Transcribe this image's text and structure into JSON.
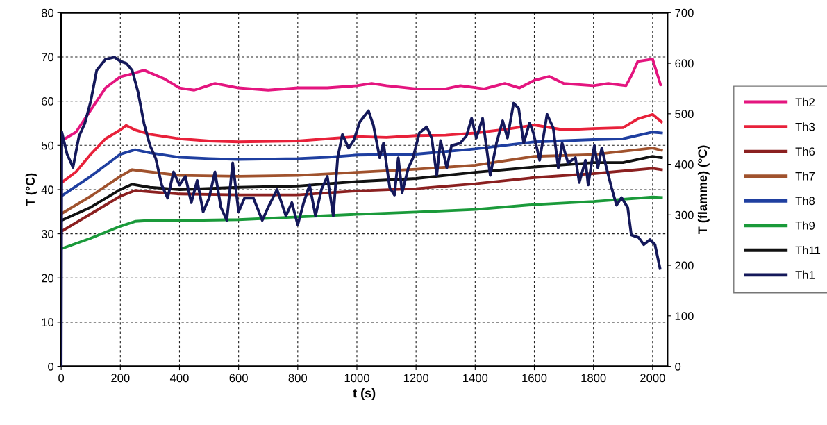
{
  "chart_data": {
    "type": "line",
    "xlabel": "t (s)",
    "ylabel": "T (°C)",
    "y2label": "T (flamme) (°C)",
    "xlim": [
      0,
      2050
    ],
    "xticks": [
      0,
      200,
      400,
      600,
      800,
      1000,
      1200,
      1400,
      1600,
      1800,
      2000
    ],
    "ylim": [
      0,
      80
    ],
    "yticks": [
      0,
      10,
      20,
      30,
      40,
      50,
      60,
      70,
      80
    ],
    "y2lim": [
      0,
      700
    ],
    "y2ticks": [
      0,
      100,
      200,
      300,
      400,
      500,
      600,
      700
    ],
    "grid": true,
    "legend": "right",
    "line_style": "solid",
    "marker": "none",
    "series": [
      {
        "name": "Th2",
        "color": "#e4157f",
        "x": [
          0,
          50,
          100,
          150,
          200,
          230,
          280,
          350,
          400,
          450,
          520,
          600,
          700,
          800,
          900,
          1000,
          1050,
          1100,
          1200,
          1300,
          1350,
          1430,
          1500,
          1550,
          1600,
          1650,
          1700,
          1800,
          1850,
          1910,
          1930,
          1950,
          2000,
          2027
        ],
        "values": [
          51,
          53,
          58,
          63,
          65.5,
          66,
          67,
          65,
          63,
          62.5,
          64,
          63,
          62.5,
          63,
          63,
          63.5,
          64,
          63.5,
          62.8,
          62.8,
          63.5,
          62.8,
          64,
          63,
          64.7,
          65.6,
          64,
          63.5,
          64,
          63.5,
          66,
          69,
          69.5,
          63.7
        ]
      },
      {
        "name": "Th3",
        "color": "#e8213a",
        "x": [
          0,
          50,
          100,
          150,
          200,
          220,
          250,
          300,
          400,
          500,
          600,
          800,
          900,
          1000,
          1100,
          1200,
          1300,
          1400,
          1500,
          1600,
          1700,
          1800,
          1900,
          1950,
          2000,
          2030
        ],
        "values": [
          41.5,
          44,
          48,
          51.5,
          53.5,
          54.5,
          53.5,
          52.5,
          51.5,
          51,
          50.8,
          51,
          51.5,
          52,
          51.8,
          52.2,
          52.3,
          52.8,
          53.6,
          54.6,
          53.5,
          53.8,
          54,
          56,
          57,
          55.3
        ]
      },
      {
        "name": "Th6",
        "color": "#8b2020",
        "x": [
          0,
          100,
          200,
          250,
          300,
          400,
          600,
          800,
          1000,
          1200,
          1400,
          1600,
          1800,
          2000,
          2030
        ],
        "values": [
          30.5,
          34.5,
          38.5,
          39.8,
          39.5,
          39,
          38.8,
          38.8,
          39.7,
          40.2,
          41.3,
          42.7,
          43.6,
          44.8,
          44.5
        ]
      },
      {
        "name": "Th7",
        "color": "#a0522d",
        "x": [
          0,
          100,
          200,
          240,
          300,
          400,
          600,
          800,
          1000,
          1200,
          1400,
          1600,
          1800,
          2000,
          2030
        ],
        "values": [
          34.5,
          38.5,
          43,
          44.5,
          44,
          43.2,
          43,
          43.2,
          43.9,
          44.6,
          45.5,
          47.5,
          47.9,
          49.4,
          48.9
        ]
      },
      {
        "name": "Th8",
        "color": "#1f3fa0",
        "x": [
          0,
          100,
          200,
          250,
          300,
          400,
          500,
          600,
          800,
          900,
          1000,
          1200,
          1400,
          1600,
          1800,
          1900,
          2000,
          2030
        ],
        "values": [
          38.5,
          43,
          48,
          49,
          48.3,
          47.3,
          47,
          46.8,
          47,
          47.3,
          47.8,
          48,
          49.2,
          50.8,
          51.3,
          51.5,
          53,
          52.8
        ]
      },
      {
        "name": "Th9",
        "color": "#1a9a3a",
        "x": [
          0,
          100,
          200,
          250,
          300,
          400,
          600,
          800,
          1000,
          1200,
          1400,
          1600,
          1800,
          2000,
          2030
        ],
        "values": [
          26.6,
          29,
          31.7,
          32.8,
          33,
          33,
          33.2,
          33.8,
          34.4,
          34.9,
          35.5,
          36.6,
          37.3,
          38.3,
          38.2
        ]
      },
      {
        "name": "Th11",
        "color": "#111111",
        "x": [
          0,
          100,
          200,
          240,
          300,
          400,
          600,
          800,
          1000,
          1200,
          1400,
          1600,
          1800,
          1900,
          2000,
          2030
        ],
        "values": [
          33,
          36,
          40,
          41.2,
          40.5,
          40,
          40.5,
          40.8,
          41.8,
          42.5,
          43.9,
          45.1,
          46.1,
          46.1,
          47.5,
          47.2
        ]
      },
      {
        "name": "Th1",
        "color": "#14185a",
        "axis": "y2",
        "x": [
          0,
          2,
          20,
          40,
          60,
          80,
          100,
          120,
          150,
          180,
          200,
          220,
          240,
          260,
          280,
          300,
          320,
          340,
          360,
          380,
          400,
          420,
          440,
          460,
          480,
          500,
          520,
          540,
          560,
          580,
          600,
          620,
          650,
          680,
          700,
          730,
          760,
          780,
          800,
          820,
          840,
          860,
          880,
          900,
          920,
          935,
          951,
          972,
          989,
          1010,
          1039,
          1056,
          1077,
          1090,
          1111,
          1127,
          1140,
          1153,
          1174,
          1190,
          1211,
          1236,
          1253,
          1270,
          1283,
          1304,
          1320,
          1350,
          1371,
          1388,
          1404,
          1425,
          1451,
          1472,
          1493,
          1509,
          1530,
          1547,
          1564,
          1584,
          1597,
          1618,
          1643,
          1664,
          1681,
          1694,
          1714,
          1739,
          1752,
          1773,
          1782,
          1803,
          1815,
          1828,
          1844,
          1861,
          1878,
          1895,
          1916,
          1928,
          1953,
          1970,
          1991,
          2008,
          2025
        ],
        "values": [
          0,
          464,
          420,
          394,
          455,
          481,
          525,
          586,
          608,
          612,
          604,
          600,
          586,
          543,
          481,
          438,
          411,
          359,
          333,
          385,
          359,
          376,
          324,
          368,
          306,
          333,
          385,
          315,
          289,
          403,
          306,
          333,
          333,
          289,
          315,
          350,
          298,
          324,
          280,
          324,
          359,
          298,
          350,
          376,
          298,
          413,
          459,
          432,
          447,
          484,
          506,
          477,
          413,
          442,
          354,
          339,
          413,
          344,
          393,
          413,
          462,
          474,
          452,
          378,
          447,
          393,
          437,
          442,
          457,
          491,
          452,
          491,
          378,
          442,
          486,
          452,
          521,
          511,
          442,
          482,
          462,
          408,
          499,
          472,
          393,
          442,
          403,
          413,
          364,
          408,
          359,
          437,
          393,
          432,
          393,
          354,
          319,
          334,
          314,
          260,
          255,
          241,
          251,
          241,
          194
        ]
      }
    ]
  }
}
